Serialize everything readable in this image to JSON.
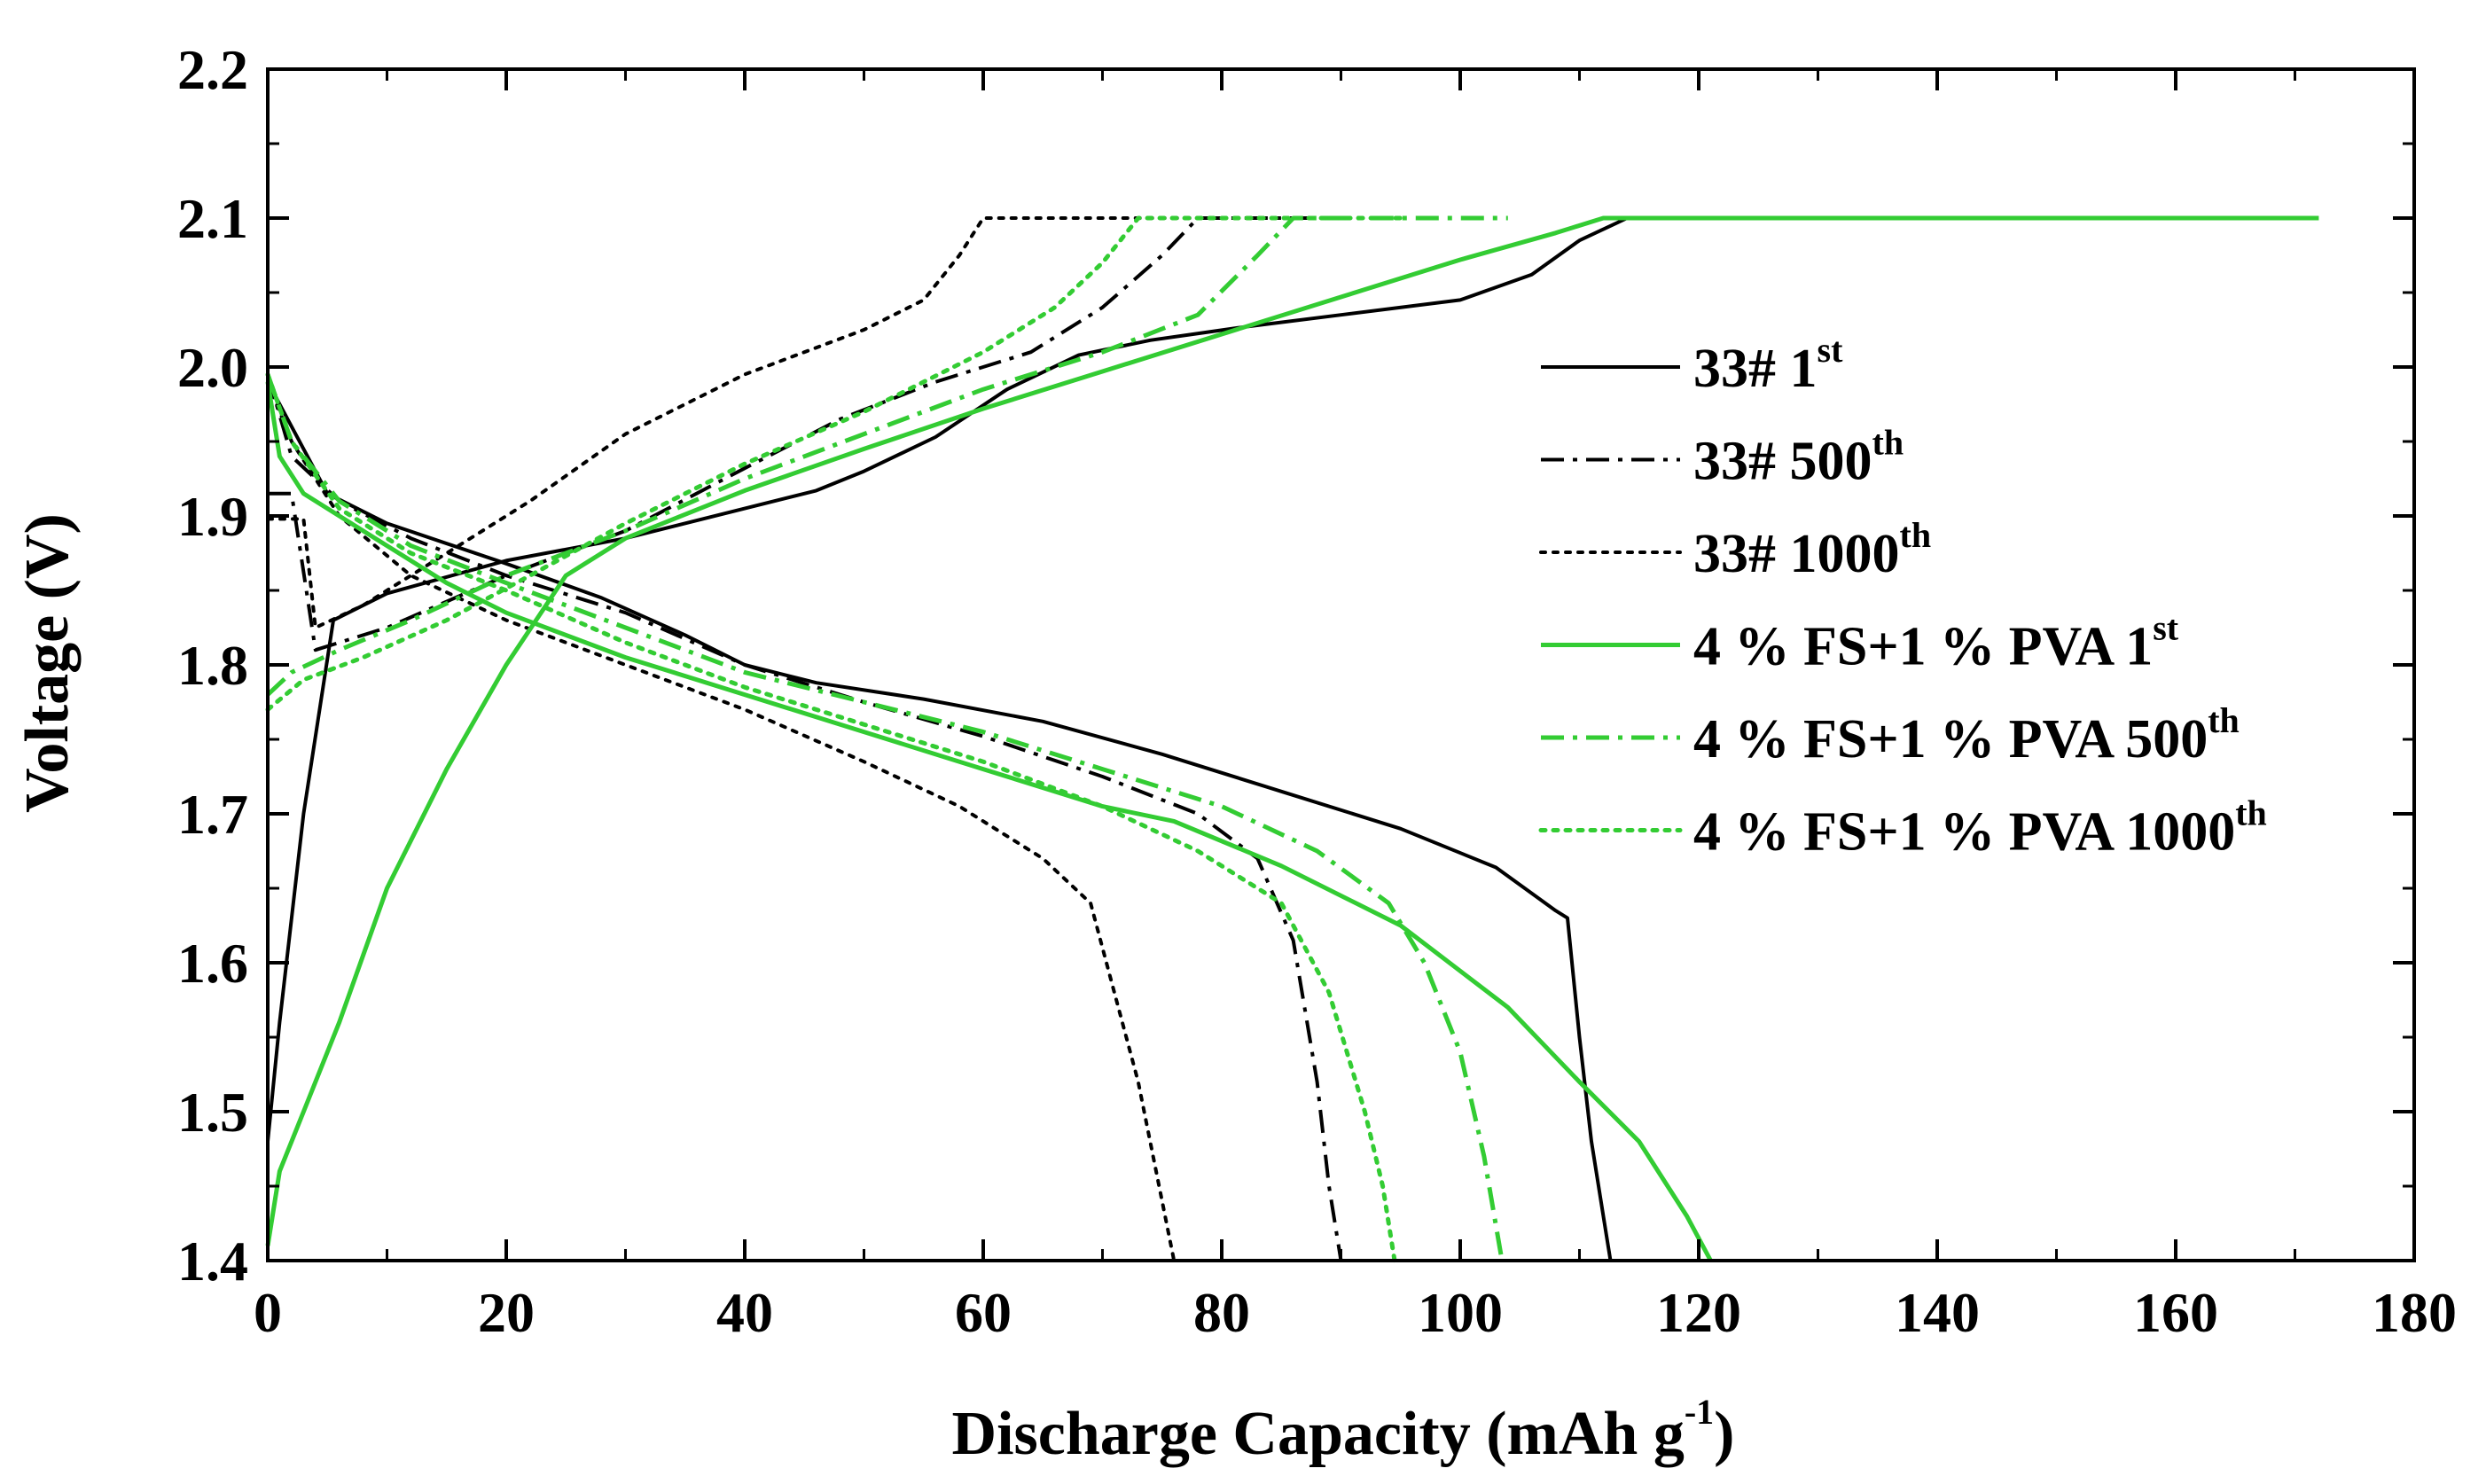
{
  "chart_data": {
    "type": "line",
    "xlabel": "Discharge Capacity (mAh g",
    "xlabel_sup": "-1",
    "xlabel_end": ")",
    "ylabel": "Voltage (V)",
    "xlim": [
      0,
      180
    ],
    "ylim": [
      1.4,
      2.2
    ],
    "xticks": [
      0,
      20,
      40,
      60,
      80,
      100,
      120,
      140,
      160,
      180
    ],
    "yticks": [
      1.4,
      1.5,
      1.6,
      1.7,
      1.8,
      1.9,
      2.0,
      2.1,
      2.2
    ],
    "xtick_labels": [
      "0",
      "20",
      "40",
      "60",
      "80",
      "100",
      "120",
      "140",
      "160",
      "180"
    ],
    "ytick_labels": [
      "1.4",
      "1.5",
      "1.6",
      "1.7",
      "1.8",
      "1.9",
      "2.0",
      "2.1",
      "2.2"
    ],
    "legend_position": "center-right",
    "series": [
      {
        "name": "33# 1st",
        "label_main": "33# 1",
        "label_sup": "st",
        "color": "#000000",
        "dash": "solid",
        "charge": [
          [
            0,
            1.48
          ],
          [
            1,
            1.56
          ],
          [
            3,
            1.7
          ],
          [
            5.5,
            1.83
          ],
          [
            10,
            1.848
          ],
          [
            20,
            1.87
          ],
          [
            30,
            1.885
          ],
          [
            40,
            1.905
          ],
          [
            46,
            1.917
          ],
          [
            50,
            1.93
          ],
          [
            56,
            1.953
          ],
          [
            62,
            1.985
          ],
          [
            68,
            2.008
          ],
          [
            74,
            2.018
          ],
          [
            82,
            2.027
          ],
          [
            90,
            2.035
          ],
          [
            100,
            2.045
          ],
          [
            106,
            2.062
          ],
          [
            110,
            2.085
          ],
          [
            114,
            2.1
          ],
          [
            126,
            2.1
          ]
        ],
        "discharge": [
          [
            0,
            1.99
          ],
          [
            2,
            1.96
          ],
          [
            5,
            1.915
          ],
          [
            10,
            1.895
          ],
          [
            20,
            1.868
          ],
          [
            28,
            1.845
          ],
          [
            35,
            1.82
          ],
          [
            40,
            1.8
          ],
          [
            46,
            1.788
          ],
          [
            55,
            1.777
          ],
          [
            65,
            1.762
          ],
          [
            75,
            1.74
          ],
          [
            85,
            1.715
          ],
          [
            95,
            1.69
          ],
          [
            103,
            1.664
          ],
          [
            108,
            1.635
          ],
          [
            109,
            1.63
          ],
          [
            110,
            1.55
          ],
          [
            111,
            1.48
          ],
          [
            112,
            1.43
          ],
          [
            112.6,
            1.4
          ]
        ]
      },
      {
        "name": "33# 500th",
        "label_main": "33# 500",
        "label_sup": "th",
        "color": "#000000",
        "dash": "dashdot",
        "charge": [
          [
            0,
            1.915
          ],
          [
            2,
            1.915
          ],
          [
            4,
            1.81
          ],
          [
            10,
            1.825
          ],
          [
            20,
            1.86
          ],
          [
            30,
            1.89
          ],
          [
            40,
            1.932
          ],
          [
            48,
            1.965
          ],
          [
            56,
            1.99
          ],
          [
            64,
            2.01
          ],
          [
            70,
            2.04
          ],
          [
            75,
            2.075
          ],
          [
            78,
            2.1
          ],
          [
            90,
            2.1
          ]
        ],
        "discharge": [
          [
            0,
            1.995
          ],
          [
            2,
            1.94
          ],
          [
            6,
            1.91
          ],
          [
            12,
            1.885
          ],
          [
            20,
            1.86
          ],
          [
            30,
            1.835
          ],
          [
            40,
            1.8
          ],
          [
            50,
            1.775
          ],
          [
            60,
            1.752
          ],
          [
            70,
            1.725
          ],
          [
            78,
            1.7
          ],
          [
            83,
            1.67
          ],
          [
            86,
            1.615
          ],
          [
            88,
            1.52
          ],
          [
            89,
            1.45
          ],
          [
            90,
            1.4
          ]
        ]
      },
      {
        "name": "33# 1000th",
        "label_main": "33# 1000",
        "label_sup": "th",
        "color": "#000000",
        "dash": "dotted",
        "charge": [
          [
            0,
            1.898
          ],
          [
            3,
            1.898
          ],
          [
            4,
            1.825
          ],
          [
            8,
            1.84
          ],
          [
            15,
            1.875
          ],
          [
            22,
            1.91
          ],
          [
            30,
            1.955
          ],
          [
            40,
            1.995
          ],
          [
            50,
            2.025
          ],
          [
            55,
            2.045
          ],
          [
            58,
            2.075
          ],
          [
            60,
            2.1
          ],
          [
            78,
            2.1
          ]
        ],
        "discharge": [
          [
            0,
            1.99
          ],
          [
            2,
            1.95
          ],
          [
            6,
            1.9
          ],
          [
            12,
            1.86
          ],
          [
            20,
            1.83
          ],
          [
            30,
            1.8
          ],
          [
            40,
            1.77
          ],
          [
            50,
            1.735
          ],
          [
            58,
            1.705
          ],
          [
            65,
            1.67
          ],
          [
            69,
            1.64
          ],
          [
            71,
            1.58
          ],
          [
            73,
            1.52
          ],
          [
            74.5,
            1.46
          ],
          [
            76,
            1.4
          ]
        ]
      },
      {
        "name": "4 % FS+1 % PVA 1st",
        "label_main": "4 % FS+1 % PVA 1",
        "label_sup": "st",
        "color": "#33cc33",
        "dash": "solid",
        "charge": [
          [
            0,
            1.41
          ],
          [
            1,
            1.46
          ],
          [
            3,
            1.5
          ],
          [
            6,
            1.56
          ],
          [
            10,
            1.65
          ],
          [
            15,
            1.73
          ],
          [
            20,
            1.8
          ],
          [
            25,
            1.86
          ],
          [
            30,
            1.885
          ],
          [
            40,
            1.917
          ],
          [
            50,
            1.945
          ],
          [
            60,
            1.972
          ],
          [
            70,
            1.997
          ],
          [
            80,
            2.022
          ],
          [
            90,
            2.047
          ],
          [
            100,
            2.072
          ],
          [
            108,
            2.09
          ],
          [
            112,
            2.1
          ],
          [
            172,
            2.1
          ]
        ],
        "discharge": [
          [
            0,
            1.99
          ],
          [
            1,
            1.94
          ],
          [
            3,
            1.915
          ],
          [
            6,
            1.9
          ],
          [
            10,
            1.88
          ],
          [
            15,
            1.855
          ],
          [
            20,
            1.835
          ],
          [
            30,
            1.805
          ],
          [
            40,
            1.78
          ],
          [
            50,
            1.755
          ],
          [
            60,
            1.73
          ],
          [
            70,
            1.705
          ],
          [
            76,
            1.695
          ],
          [
            85,
            1.665
          ],
          [
            95,
            1.625
          ],
          [
            104,
            1.57
          ],
          [
            110,
            1.52
          ],
          [
            115,
            1.48
          ],
          [
            119,
            1.43
          ],
          [
            121,
            1.4
          ]
        ]
      },
      {
        "name": "4 % FS+1 % PVA 500th",
        "label_main": "4 % FS+1 % PVA 500",
        "label_sup": "th",
        "color": "#33cc33",
        "dash": "dashdot",
        "charge": [
          [
            0,
            1.78
          ],
          [
            2,
            1.795
          ],
          [
            6,
            1.81
          ],
          [
            12,
            1.83
          ],
          [
            20,
            1.86
          ],
          [
            30,
            1.89
          ],
          [
            40,
            1.925
          ],
          [
            50,
            1.955
          ],
          [
            60,
            1.985
          ],
          [
            70,
            2.01
          ],
          [
            78,
            2.035
          ],
          [
            83,
            2.075
          ],
          [
            86,
            2.1
          ],
          [
            104,
            2.1
          ]
        ],
        "discharge": [
          [
            0,
            1.995
          ],
          [
            2,
            1.95
          ],
          [
            6,
            1.91
          ],
          [
            12,
            1.88
          ],
          [
            20,
            1.855
          ],
          [
            30,
            1.825
          ],
          [
            40,
            1.795
          ],
          [
            50,
            1.775
          ],
          [
            60,
            1.755
          ],
          [
            70,
            1.73
          ],
          [
            80,
            1.705
          ],
          [
            88,
            1.675
          ],
          [
            94,
            1.64
          ],
          [
            97,
            1.6
          ],
          [
            100,
            1.54
          ],
          [
            102,
            1.47
          ],
          [
            103.5,
            1.4
          ]
        ]
      },
      {
        "name": "4 % FS+1 % PVA 1000th",
        "label_main": "4 % FS+1 % PVA 1000",
        "label_sup": "th",
        "color": "#33cc33",
        "dash": "dotted",
        "charge": [
          [
            0,
            1.77
          ],
          [
            3,
            1.79
          ],
          [
            8,
            1.805
          ],
          [
            15,
            1.83
          ],
          [
            22,
            1.86
          ],
          [
            30,
            1.895
          ],
          [
            40,
            1.935
          ],
          [
            50,
            1.97
          ],
          [
            60,
            2.01
          ],
          [
            66,
            2.04
          ],
          [
            70,
            2.07
          ],
          [
            73,
            2.1
          ],
          [
            95,
            2.1
          ]
        ],
        "discharge": [
          [
            0,
            1.995
          ],
          [
            2,
            1.95
          ],
          [
            6,
            1.905
          ],
          [
            12,
            1.875
          ],
          [
            20,
            1.85
          ],
          [
            30,
            1.815
          ],
          [
            40,
            1.785
          ],
          [
            50,
            1.76
          ],
          [
            60,
            1.735
          ],
          [
            70,
            1.705
          ],
          [
            78,
            1.675
          ],
          [
            85,
            1.64
          ],
          [
            89,
            1.58
          ],
          [
            92,
            1.5
          ],
          [
            93.5,
            1.45
          ],
          [
            94.5,
            1.4
          ]
        ]
      }
    ]
  }
}
